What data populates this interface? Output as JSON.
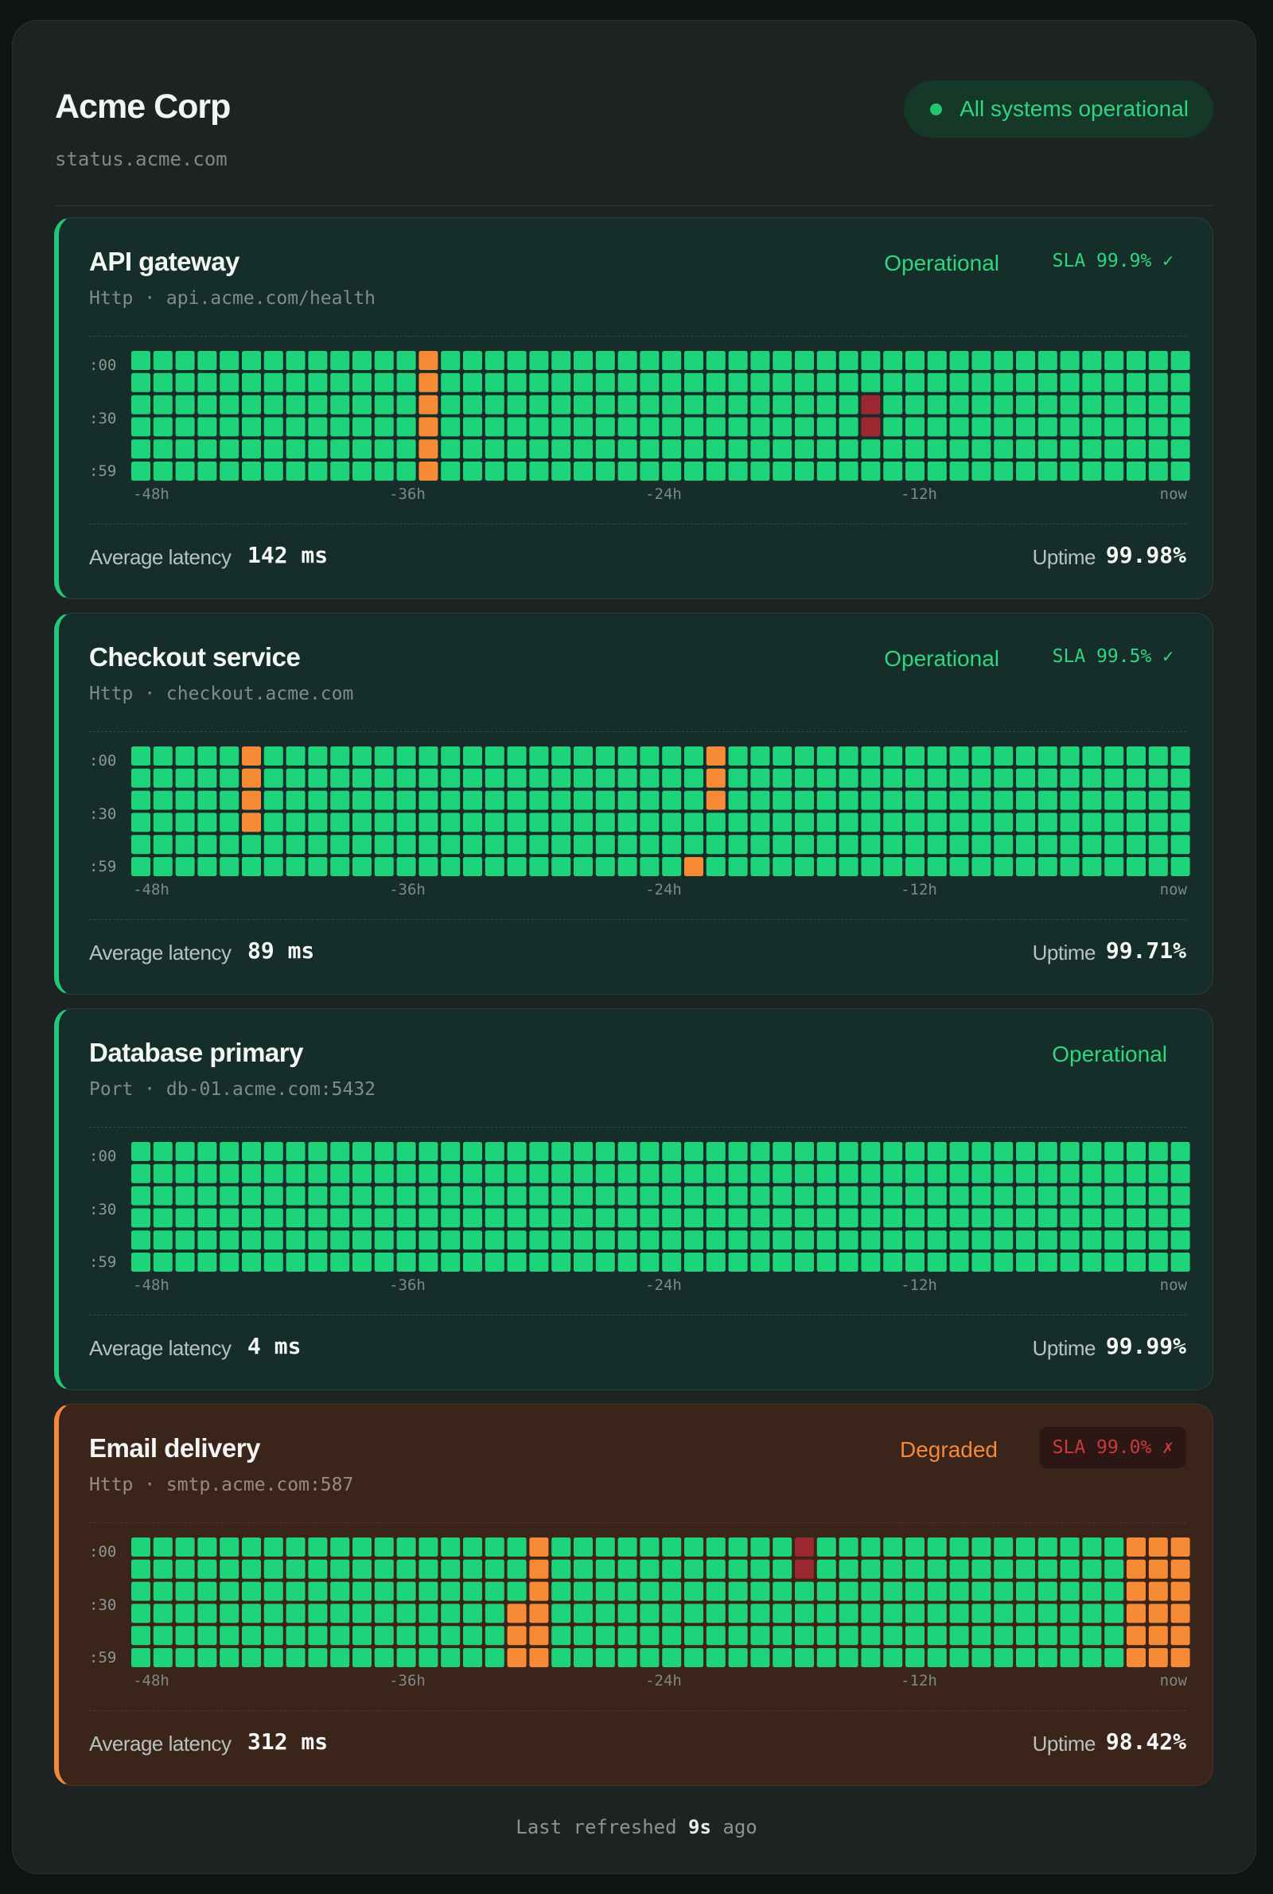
{
  "header": {
    "company": "Acme Corp",
    "host": "status.acme.com",
    "overall_status": "All systems operational",
    "status_color": "#22c76f"
  },
  "grid": {
    "row_labels": [
      ":00",
      ":30",
      ":59"
    ],
    "axis_labels": [
      "-48h",
      "-36h",
      "-24h",
      "-12h",
      "now"
    ],
    "columns": 48,
    "rows": 6,
    "colors": {
      "ok": "#1ed47a",
      "warn": "#f78a35",
      "down": "#9b2830"
    }
  },
  "labels": {
    "latency": "Average latency",
    "uptime": "Uptime"
  },
  "services": [
    {
      "name": "API gateway",
      "endpoint": "Http · api.acme.com/health",
      "status": "Operational",
      "sla": "SLA 99.9% ✓",
      "sla_met": true,
      "latency": "142 ms",
      "uptime": "99.98%",
      "degraded": false,
      "incidents": [
        {
          "col": 13,
          "rows": [
            0,
            1,
            2,
            3,
            4,
            5
          ],
          "level": "warn"
        },
        {
          "col": 33,
          "rows": [
            2,
            3
          ],
          "level": "down"
        }
      ]
    },
    {
      "name": "Checkout service",
      "endpoint": "Http · checkout.acme.com",
      "status": "Operational",
      "sla": "SLA 99.5% ✓",
      "sla_met": true,
      "latency": "89 ms",
      "uptime": "99.71%",
      "degraded": false,
      "incidents": [
        {
          "col": 5,
          "rows": [
            0,
            1,
            2,
            3
          ],
          "level": "warn"
        },
        {
          "col": 26,
          "rows": [
            0,
            1,
            2
          ],
          "level": "warn"
        },
        {
          "col": 25,
          "rows": [
            5
          ],
          "level": "warn"
        }
      ]
    },
    {
      "name": "Database primary",
      "endpoint": "Port · db-01.acme.com:5432",
      "status": "Operational",
      "sla": "",
      "sla_met": true,
      "latency": "4 ms",
      "uptime": "99.99%",
      "degraded": false,
      "incidents": []
    },
    {
      "name": "Email delivery",
      "endpoint": "Http · smtp.acme.com:587",
      "status": "Degraded",
      "sla": "SLA 99.0% ✗",
      "sla_met": false,
      "latency": "312 ms",
      "uptime": "98.42%",
      "degraded": true,
      "incidents": [
        {
          "col": 18,
          "rows": [
            0,
            1,
            2,
            3,
            4,
            5
          ],
          "level": "warn"
        },
        {
          "col": 17,
          "rows": [
            3,
            4,
            5
          ],
          "level": "warn"
        },
        {
          "col": 30,
          "rows": [
            0,
            1
          ],
          "level": "down"
        },
        {
          "col": 45,
          "rows": [
            0,
            1,
            2,
            3,
            4,
            5
          ],
          "level": "warn"
        },
        {
          "col": 46,
          "rows": [
            0,
            1,
            2,
            3,
            4,
            5
          ],
          "level": "warn"
        },
        {
          "col": 47,
          "rows": [
            0,
            1,
            2,
            3,
            4,
            5
          ],
          "level": "warn"
        }
      ]
    }
  ],
  "footer": {
    "prefix": "Last refreshed",
    "value": "9s",
    "suffix": "ago"
  }
}
